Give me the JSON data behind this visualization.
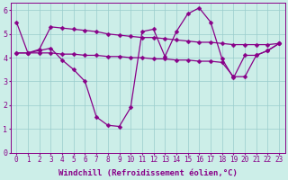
{
  "xlabel": "Windchill (Refroidissement éolien,°C)",
  "bg_color": "#cceee8",
  "line_color": "#880088",
  "xlim": [
    -0.5,
    23.5
  ],
  "ylim": [
    0,
    6.3
  ],
  "xticks": [
    0,
    1,
    2,
    3,
    4,
    5,
    6,
    7,
    8,
    9,
    10,
    11,
    12,
    13,
    14,
    15,
    16,
    17,
    18,
    19,
    20,
    21,
    22,
    23
  ],
  "yticks": [
    0,
    1,
    2,
    3,
    4,
    5,
    6
  ],
  "hours": [
    0,
    1,
    2,
    3,
    4,
    5,
    6,
    7,
    8,
    9,
    10,
    11,
    12,
    13,
    14,
    15,
    16,
    17,
    18,
    19,
    20,
    21,
    22,
    23
  ],
  "line1": [
    5.5,
    4.2,
    4.35,
    5.3,
    5.25,
    5.2,
    5.15,
    5.1,
    5.0,
    4.95,
    4.9,
    4.85,
    4.85,
    4.8,
    4.75,
    4.7,
    4.65,
    4.65,
    4.6,
    4.55,
    4.55,
    4.55,
    4.55,
    4.6
  ],
  "line2": [
    4.2,
    4.2,
    4.2,
    4.2,
    4.15,
    4.15,
    4.1,
    4.1,
    4.05,
    4.05,
    4.0,
    4.0,
    3.95,
    3.95,
    3.9,
    3.9,
    3.85,
    3.85,
    3.8,
    3.2,
    3.2,
    4.1,
    4.3,
    4.6
  ],
  "line3": [
    4.2,
    4.2,
    4.3,
    4.4,
    3.9,
    3.5,
    3.0,
    1.5,
    1.15,
    1.1,
    1.9,
    5.1,
    5.2,
    4.05,
    5.1,
    5.85,
    6.1,
    5.5,
    3.95,
    3.15,
    4.1,
    4.1,
    4.3,
    4.6
  ],
  "marker_size": 2.5,
  "linewidth": 0.9,
  "font_size_label": 6.5,
  "font_size_tick": 5.5
}
